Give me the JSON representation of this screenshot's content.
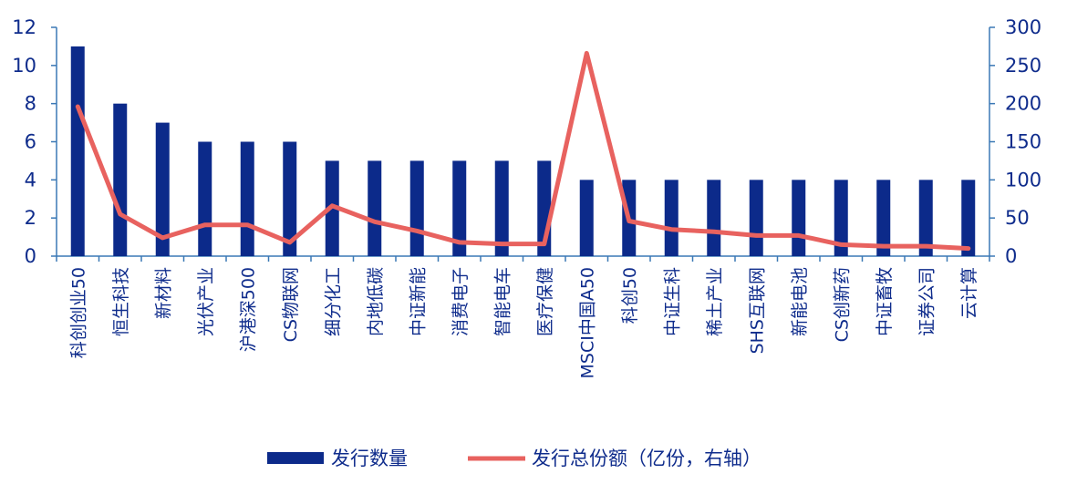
{
  "chart_data": {
    "type": "bar",
    "categories": [
      "科创创业50",
      "恒生科技",
      "新材料",
      "光伏产业",
      "沪港深500",
      "CS物联网",
      "细分化工",
      "内地低碳",
      "中证新能",
      "消费电子",
      "智能电车",
      "医疗保健",
      "MSCI中国A50",
      "科创50",
      "中证生科",
      "稀土产业",
      "SHS互联网",
      "新能电池",
      "CS创新药",
      "中证畜牧",
      "证券公司",
      "云计算"
    ],
    "series": [
      {
        "name": "发行数量",
        "type": "bar",
        "axis": "left",
        "color": "#0c2a8a",
        "values": [
          11,
          8,
          7,
          6,
          6,
          6,
          5,
          5,
          5,
          5,
          5,
          5,
          4,
          4,
          4,
          4,
          4,
          4,
          4,
          4,
          4,
          4
        ]
      },
      {
        "name": "发行总份额（亿份，右轴）",
        "type": "line",
        "axis": "right",
        "color": "#e8625f",
        "values": [
          196,
          55,
          24,
          41,
          41,
          18,
          66,
          45,
          33,
          18,
          16,
          16,
          266,
          46,
          35,
          32,
          27,
          27,
          15,
          13,
          13,
          10
        ]
      }
    ],
    "y_left": {
      "min": 0,
      "max": 12,
      "ticks": [
        "0",
        "2",
        "4",
        "6",
        "8",
        "10",
        "12"
      ]
    },
    "y_right": {
      "min": 0,
      "max": 300,
      "ticks": [
        "0",
        "50",
        "100",
        "150",
        "200",
        "250",
        "300"
      ]
    },
    "grid": false,
    "legend_position": "bottom"
  }
}
